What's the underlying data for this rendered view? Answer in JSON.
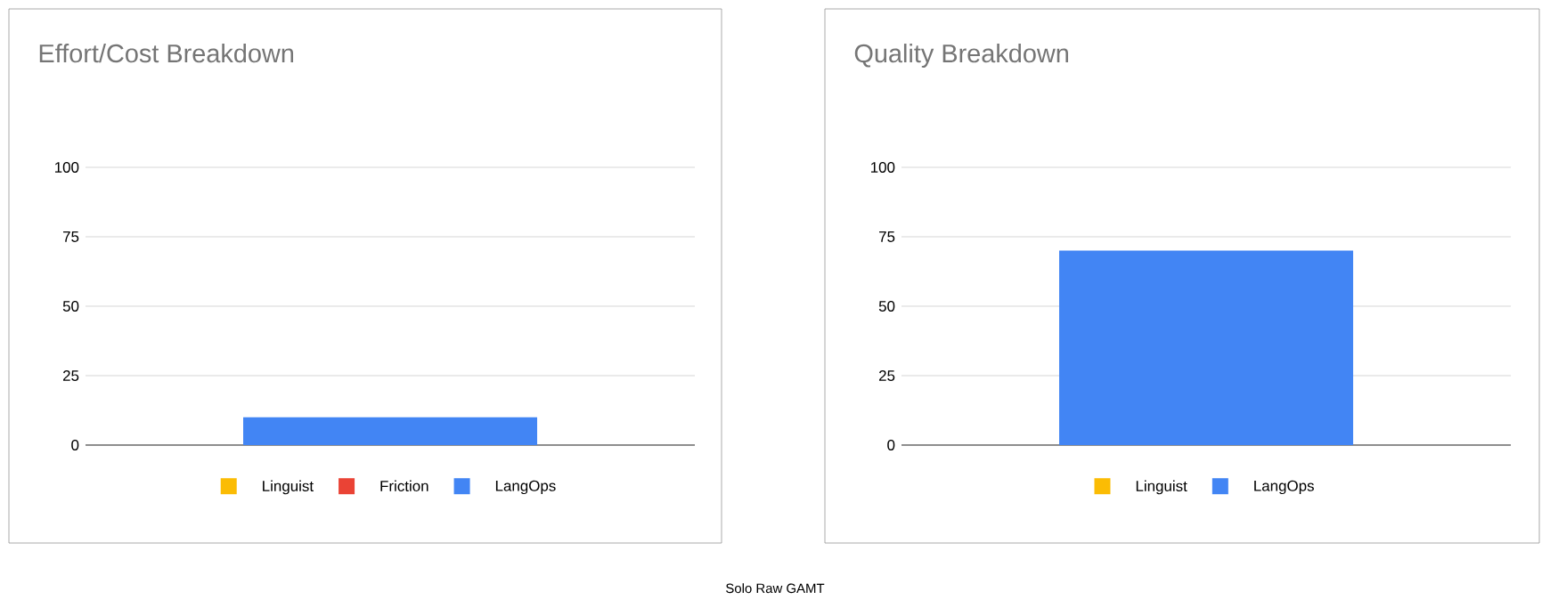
{
  "chart_data": [
    {
      "type": "bar",
      "title": "Effort/Cost Breakdown",
      "stacked": true,
      "categories": [
        null
      ],
      "ylim": [
        0,
        100
      ],
      "yticks": [
        0,
        25,
        50,
        75,
        100
      ],
      "grid": "y",
      "legend": "bottom",
      "annotations": [
        "Solo Raw GAMT"
      ],
      "series": [
        {
          "name": "Linguist",
          "color": "#fbbc04",
          "values": [
            0
          ]
        },
        {
          "name": "Friction",
          "color": "#ea4335",
          "values": [
            0
          ]
        },
        {
          "name": "LangOps",
          "color": "#4285f4",
          "values": [
            10
          ]
        }
      ]
    },
    {
      "type": "bar",
      "title": "Quality Breakdown",
      "stacked": true,
      "categories": [
        null
      ],
      "ylim": [
        0,
        100
      ],
      "yticks": [
        0,
        25,
        50,
        75,
        100
      ],
      "grid": "y",
      "legend": "bottom",
      "series": [
        {
          "name": "Linguist",
          "color": "#fbbc04",
          "values": [
            0
          ]
        },
        {
          "name": "LangOps",
          "color": "#4285f4",
          "values": [
            70
          ]
        }
      ]
    }
  ]
}
